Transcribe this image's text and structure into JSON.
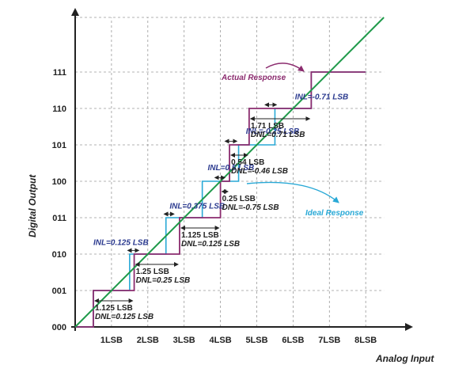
{
  "axes": {
    "x_title": "Analog Input",
    "y_title": "Digital Output",
    "x_ticks": [
      "1LSB",
      "2LSB",
      "3LSB",
      "4LSB",
      "5LSB",
      "6LSB",
      "7LSB",
      "8LSB"
    ],
    "y_ticks": [
      "000",
      "001",
      "010",
      "011",
      "100",
      "101",
      "110",
      "111"
    ]
  },
  "labels": {
    "actual_response": "Actual Response",
    "ideal_response": "Ideal Response"
  },
  "annotations": [
    {
      "inl": "",
      "width": "1.125 LSB",
      "dnl": "DNL=0.125 LSB"
    },
    {
      "inl": "INL=0.125 LSB",
      "width": "1.25 LSB",
      "dnl": "DNL=0.25 LSB"
    },
    {
      "inl": "INL=0.375 LSB",
      "width": "1.125 LSB",
      "dnl": "DNL=0.125 LSB"
    },
    {
      "inl": "INL=0.5 LSB",
      "width": "0.25 LSB",
      "dnl": "DNL=-0.75 LSB"
    },
    {
      "inl": "INL=-0.25 LSB",
      "width": "0.54 LSB",
      "dnl": "DNL=-0.46 LSB"
    },
    {
      "inl": "INL=-0.71 LSB",
      "width": "1.71 LSB",
      "dnl": "DNL=0.71 LSB"
    }
  ],
  "colors": {
    "axis": "#222222",
    "grid": "#9a9a9a",
    "actual": "#8b2b6e",
    "ideal_steps": "#29a9d6",
    "ideal_line": "#1f9a4a",
    "inl_text": "#2b3a8f",
    "arrow": "#222222"
  },
  "chart_data": {
    "type": "line",
    "x_unit": "LSB",
    "xlim": [
      0,
      8.5
    ],
    "y_codes": [
      "000",
      "001",
      "010",
      "011",
      "100",
      "101",
      "110",
      "111"
    ],
    "series": [
      {
        "name": "Actual Response",
        "transitions_lsb": [
          0.5,
          1.625,
          2.875,
          4.0,
          4.25,
          4.79,
          6.5
        ],
        "final_x": 8.0
      },
      {
        "name": "Ideal Response",
        "transitions_lsb": [
          0.5,
          1.5,
          2.5,
          3.5,
          4.5,
          5.5,
          6.5
        ],
        "final_x": 8.0
      }
    ],
    "diagonal": {
      "from": [
        0,
        0
      ],
      "to": [
        8.5,
        8.5
      ]
    }
  }
}
